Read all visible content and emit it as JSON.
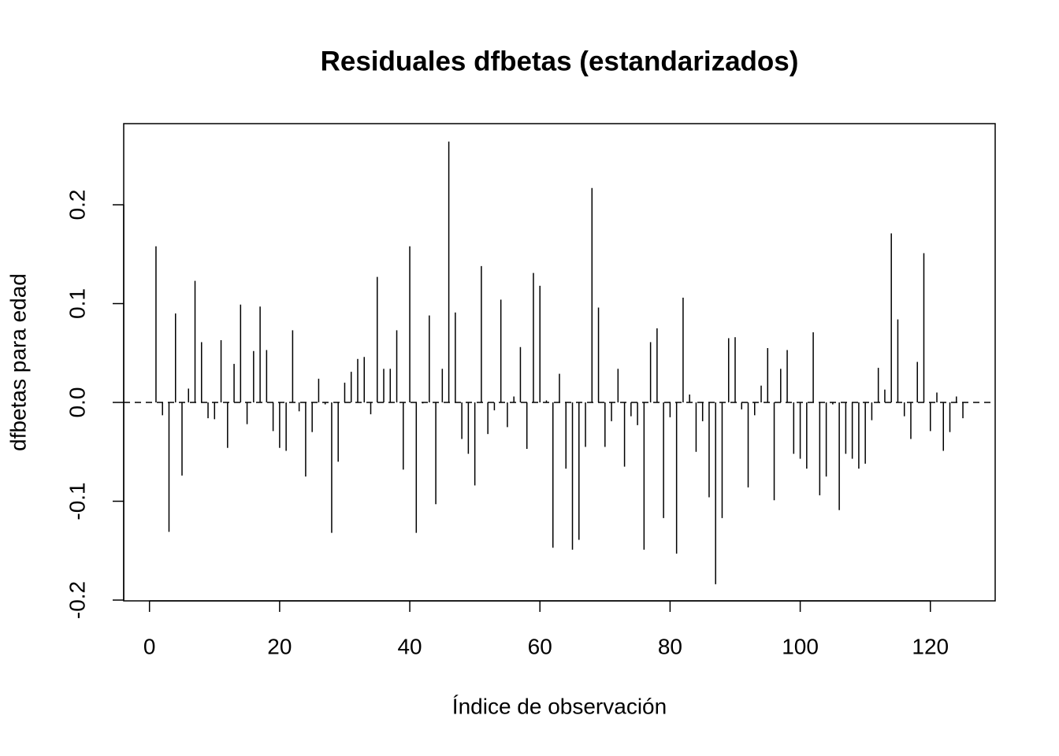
{
  "chart_data": {
    "type": "stem",
    "title": "Residuales dfbetas (estandarizados)",
    "x_label": "Índice de observación",
    "y_label": "dfbetas para edad",
    "color": "#000000",
    "x": [
      1,
      2,
      3,
      4,
      5,
      6,
      7,
      8,
      9,
      10,
      11,
      12,
      13,
      14,
      15,
      16,
      17,
      18,
      19,
      20,
      21,
      22,
      23,
      24,
      25,
      26,
      27,
      28,
      29,
      30,
      31,
      32,
      33,
      34,
      35,
      36,
      37,
      38,
      39,
      40,
      41,
      42,
      43,
      44,
      45,
      46,
      47,
      48,
      49,
      50,
      51,
      52,
      53,
      54,
      55,
      56,
      57,
      58,
      59,
      60,
      61,
      62,
      63,
      64,
      65,
      66,
      67,
      68,
      69,
      70,
      71,
      72,
      73,
      74,
      75,
      76,
      77,
      78,
      79,
      80,
      81,
      82,
      83,
      84,
      85,
      86,
      87,
      88,
      89,
      90,
      91,
      92,
      93,
      94,
      95,
      96,
      97,
      98,
      99,
      100,
      101,
      102,
      103,
      104,
      105,
      106,
      107,
      108,
      109,
      110,
      111,
      112,
      113,
      114,
      115,
      116,
      117,
      118,
      119,
      120,
      121,
      122,
      123,
      124,
      125
    ],
    "values": [
      0.158,
      -0.013,
      -0.131,
      0.09,
      -0.074,
      0.014,
      0.123,
      0.061,
      -0.016,
      -0.017,
      0.063,
      -0.046,
      0.039,
      0.099,
      -0.022,
      0.052,
      0.097,
      0.053,
      -0.029,
      -0.046,
      -0.049,
      0.073,
      -0.009,
      -0.075,
      -0.03,
      0.024,
      -0.002,
      -0.132,
      -0.06,
      0.02,
      0.031,
      0.044,
      0.046,
      -0.012,
      0.127,
      0.034,
      0.034,
      0.073,
      -0.068,
      0.158,
      -0.132,
      -0.001,
      0.088,
      -0.103,
      0.034,
      0.264,
      0.091,
      -0.037,
      -0.052,
      -0.084,
      0.138,
      -0.032,
      -0.008,
      0.104,
      -0.025,
      0.006,
      0.056,
      -0.047,
      0.131,
      0.118,
      0.002,
      -0.147,
      0.029,
      -0.067,
      -0.149,
      -0.139,
      -0.045,
      0.217,
      0.096,
      -0.045,
      -0.019,
      0.034,
      -0.065,
      -0.014,
      -0.023,
      -0.149,
      0.061,
      0.075,
      -0.117,
      -0.015,
      -0.153,
      0.106,
      0.008,
      -0.05,
      -0.019,
      -0.096,
      -0.184,
      -0.117,
      0.065,
      0.066,
      -0.007,
      -0.086,
      -0.013,
      0.017,
      0.055,
      -0.099,
      0.034,
      0.053,
      -0.052,
      -0.057,
      -0.067,
      0.071,
      -0.094,
      -0.075,
      -0.002,
      -0.109,
      -0.052,
      -0.057,
      -0.067,
      -0.062,
      -0.018,
      0.035,
      0.013,
      0.171,
      0.084,
      -0.014,
      -0.037,
      0.041,
      0.151,
      -0.029,
      0.01,
      -0.049,
      -0.03,
      0.006,
      -0.016
    ],
    "xlim": [
      -3.96,
      129.96
    ],
    "ylim": [
      -0.2008,
      0.2821
    ],
    "xticks": [
      0,
      20,
      40,
      60,
      80,
      100,
      120
    ],
    "yticks": [
      -0.2,
      -0.1,
      {
        "value": 0,
        "label": "0.0"
      },
      0.1,
      0.2
    ],
    "reference_line": {
      "value": 0,
      "style": "dashed"
    }
  }
}
